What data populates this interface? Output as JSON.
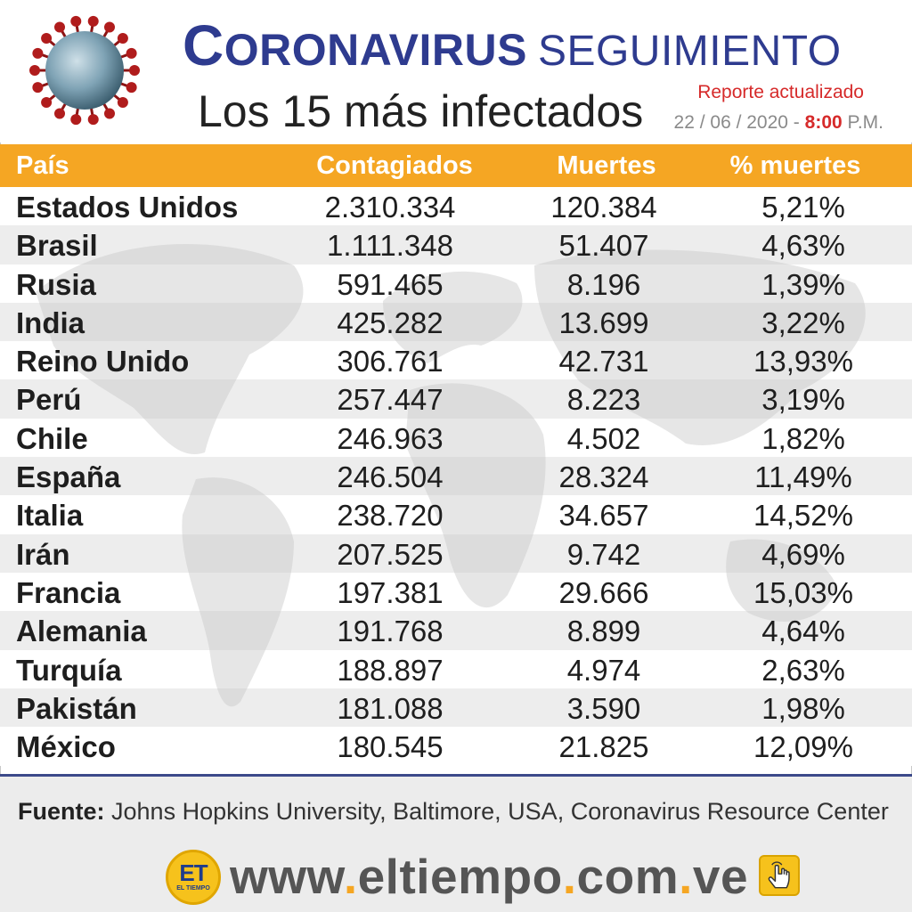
{
  "header": {
    "title_part1": "Coronavirus",
    "title_part2": "SEGUIMIENTO",
    "subtitle": "Los 15 más infectados",
    "report_label": "Reporte actualizado",
    "report_date": "22 / 06 / 2020 -",
    "report_time": "8:00",
    "report_meridiem": "P.M."
  },
  "table": {
    "headers": [
      "País",
      "Contagiados",
      "Muertes",
      "% muertes"
    ],
    "rows": [
      {
        "country": "Estados Unidos",
        "infected": "2.310.334",
        "deaths": "120.384",
        "pct": "5,21%"
      },
      {
        "country": "Brasil",
        "infected": "1.111.348",
        "deaths": "51.407",
        "pct": "4,63%"
      },
      {
        "country": "Rusia",
        "infected": "591.465",
        "deaths": "8.196",
        "pct": "1,39%"
      },
      {
        "country": "India",
        "infected": "425.282",
        "deaths": "13.699",
        "pct": "3,22%"
      },
      {
        "country": "Reino Unido",
        "infected": "306.761",
        "deaths": "42.731",
        "pct": "13,93%"
      },
      {
        "country": "Perú",
        "infected": "257.447",
        "deaths": "8.223",
        "pct": "3,19%"
      },
      {
        "country": "Chile",
        "infected": "246.963",
        "deaths": "4.502",
        "pct": "1,82%"
      },
      {
        "country": "España",
        "infected": "246.504",
        "deaths": "28.324",
        "pct": "11,49%"
      },
      {
        "country": "Italia",
        "infected": "238.720",
        "deaths": "34.657",
        "pct": "14,52%"
      },
      {
        "country": "Irán",
        "infected": "207.525",
        "deaths": "9.742",
        "pct": "4,69%"
      },
      {
        "country": "Francia",
        "infected": "197.381",
        "deaths": "29.666",
        "pct": "15,03%"
      },
      {
        "country": "Alemania",
        "infected": "191.768",
        "deaths": "8.899",
        "pct": "4,64%"
      },
      {
        "country": "Turquía",
        "infected": "188.897",
        "deaths": "4.974",
        "pct": "2,63%"
      },
      {
        "country": "Pakistán",
        "infected": "181.088",
        "deaths": "3.590",
        "pct": "1,98%"
      },
      {
        "country": "México",
        "infected": "180.545",
        "deaths": "21.825",
        "pct": "12,09%"
      }
    ]
  },
  "footer": {
    "source_label": "Fuente:",
    "source_text": "Johns Hopkins University, Baltimore, USA, Coronavirus Resource Center",
    "logo_text": "ET",
    "logo_subtext": "EL TIEMPO",
    "website_parts": [
      "www",
      ".",
      "eltiempo",
      ".",
      "com",
      ".",
      "ve"
    ]
  },
  "colors": {
    "title_blue": "#2e3b8f",
    "header_orange": "#f5a623",
    "accent_red": "#d62a2a",
    "footer_bg": "#ececec"
  },
  "icons": [
    "coronavirus-icon",
    "world-map-background",
    "el-tiempo-logo",
    "click-hand-icon"
  ]
}
